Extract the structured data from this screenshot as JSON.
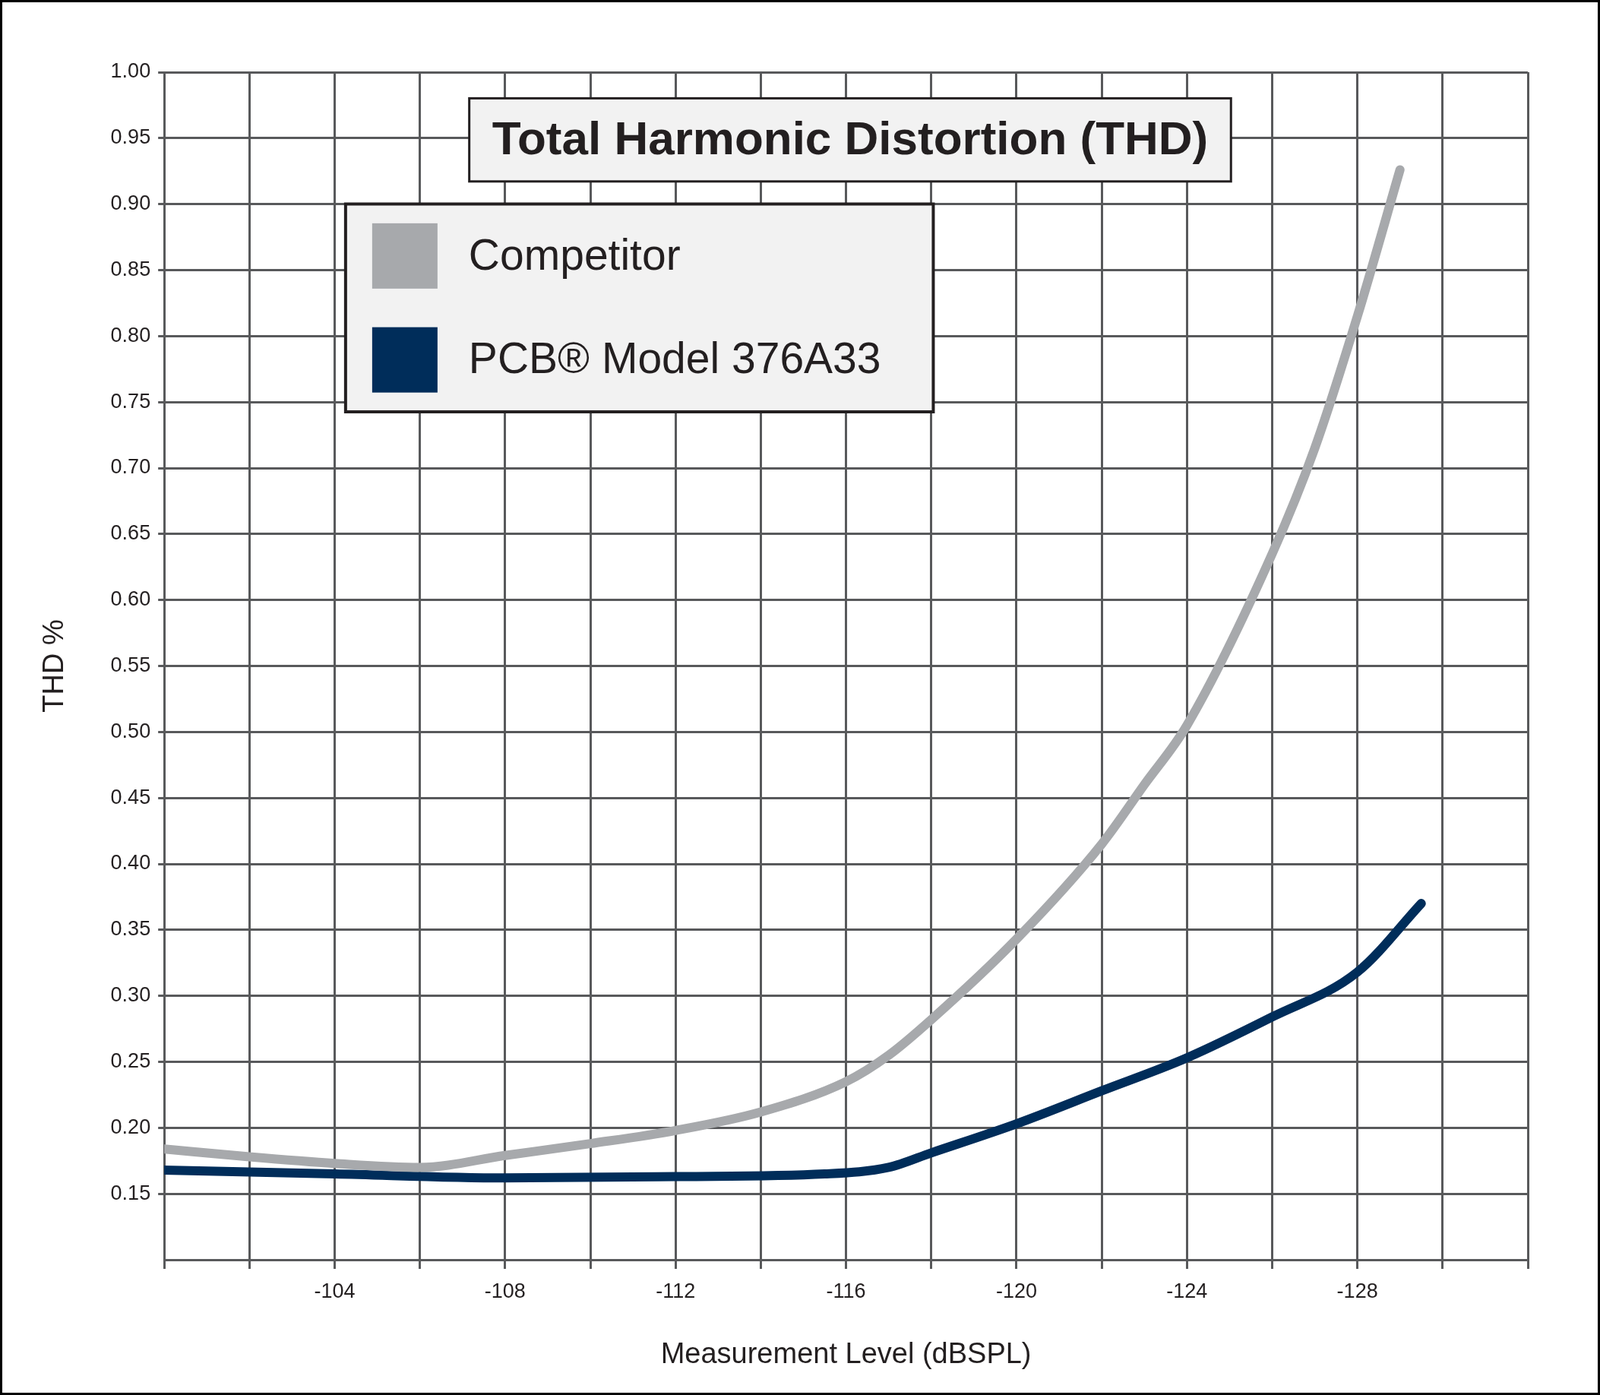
{
  "chart_data": {
    "type": "line",
    "title": "Total Harmonic Distortion (THD)",
    "x_label": "Measurement Level (dBSPL)",
    "y_label": "THD %",
    "xlim": [
      -100,
      -132
    ],
    "xticks": [
      -104,
      -108,
      -112,
      -116,
      -120,
      -124,
      -128
    ],
    "ylim": [
      0.1,
      1.0
    ],
    "yticks": [
      0.15,
      {
        "value": 0.2,
        "label": "0.20"
      },
      0.25,
      {
        "value": 0.3,
        "label": "0.30"
      },
      0.35,
      {
        "value": 0.4,
        "label": "0.40"
      },
      0.45,
      {
        "value": 0.5,
        "label": "0.50"
      },
      0.55,
      {
        "value": 0.6,
        "label": "0.60"
      },
      0.65,
      {
        "value": 0.7,
        "label": "0.70"
      },
      0.75,
      {
        "value": 0.8,
        "label": "0.80"
      },
      0.85,
      {
        "value": 0.9,
        "label": "0.90"
      },
      0.95,
      {
        "value": 1.0,
        "label": "1.00"
      }
    ],
    "grid": true,
    "legend": "upper left",
    "series": [
      {
        "name": "Competitor",
        "color": "#a7a9ac",
        "x": [
          -100,
          -102,
          -104,
          -106,
          -108,
          -110,
          -112,
          -114,
          -116,
          -117,
          -118,
          -120,
          -122,
          -123,
          -124,
          -126,
          -127,
          -128,
          -129
        ],
        "values": [
          0.184,
          0.178,
          0.173,
          0.17,
          0.179,
          0.188,
          0.198,
          0.212,
          0.235,
          0.255,
          0.282,
          0.343,
          0.415,
          0.46,
          0.505,
          0.635,
          0.715,
          0.815,
          0.926
        ]
      },
      {
        "name": "PCB® Model 376A33",
        "color": "#002d5a",
        "x": [
          -100,
          -104,
          -108,
          -112,
          -115.5,
          -117,
          -118,
          -120,
          -122,
          -124,
          -126,
          -128,
          -129.5
        ],
        "values": [
          0.168,
          0.165,
          0.162,
          0.163,
          0.165,
          0.17,
          0.181,
          0.203,
          0.228,
          0.253,
          0.284,
          0.318,
          0.37
        ]
      }
    ]
  }
}
